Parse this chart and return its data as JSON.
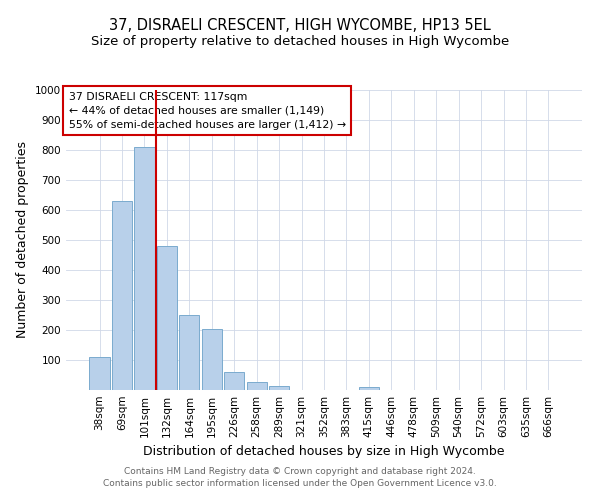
{
  "title": "37, DISRAELI CRESCENT, HIGH WYCOMBE, HP13 5EL",
  "subtitle": "Size of property relative to detached houses in High Wycombe",
  "xlabel": "Distribution of detached houses by size in High Wycombe",
  "ylabel": "Number of detached properties",
  "categories": [
    "38sqm",
    "69sqm",
    "101sqm",
    "132sqm",
    "164sqm",
    "195sqm",
    "226sqm",
    "258sqm",
    "289sqm",
    "321sqm",
    "352sqm",
    "383sqm",
    "415sqm",
    "446sqm",
    "478sqm",
    "509sqm",
    "540sqm",
    "572sqm",
    "603sqm",
    "635sqm",
    "666sqm"
  ],
  "values": [
    110,
    630,
    810,
    480,
    250,
    205,
    60,
    28,
    15,
    0,
    0,
    0,
    10,
    0,
    0,
    0,
    0,
    0,
    0,
    0,
    0
  ],
  "bar_color": "#b8d0ea",
  "bar_edge_color": "#7aabce",
  "red_line_x": 2.5,
  "annotation_title": "37 DISRAELI CRESCENT: 117sqm",
  "annotation_line1": "← 44% of detached houses are smaller (1,149)",
  "annotation_line2": "55% of semi-detached houses are larger (1,412) →",
  "annotation_box_color": "#ffffff",
  "annotation_box_edge_color": "#cc0000",
  "red_line_color": "#cc0000",
  "ylim": [
    0,
    1000
  ],
  "yticks": [
    0,
    100,
    200,
    300,
    400,
    500,
    600,
    700,
    800,
    900,
    1000
  ],
  "footer1": "Contains HM Land Registry data © Crown copyright and database right 2024.",
  "footer2": "Contains public sector information licensed under the Open Government Licence v3.0.",
  "bg_color": "#ffffff",
  "grid_color": "#d0d8e8",
  "title_fontsize": 10.5,
  "subtitle_fontsize": 9.5,
  "axis_label_fontsize": 9,
  "tick_fontsize": 7.5,
  "footer_fontsize": 6.5
}
